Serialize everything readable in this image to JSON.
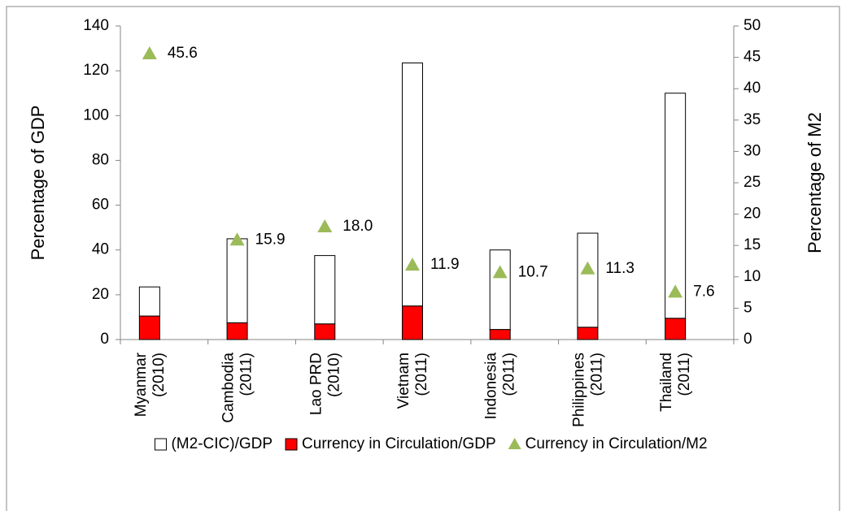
{
  "chart_data": {
    "type": "bar_triangle",
    "categories": [
      [
        "Myanmar",
        "(2010)"
      ],
      [
        "Cambodia",
        "(2011)"
      ],
      [
        "Lao PRD",
        "(2010)"
      ],
      [
        "Vietnam",
        "(2011)"
      ],
      [
        "Indonesia",
        "(2011)"
      ],
      [
        "Philippines",
        "(2011)"
      ],
      [
        "Thailand",
        "(2011)"
      ]
    ],
    "series": [
      {
        "name": "(M2-CIC)/GDP",
        "color": "#ffffff",
        "values": [
          13,
          37.5,
          30.5,
          108.5,
          35.5,
          42,
          100.5
        ]
      },
      {
        "name": "Currency in Circulation/GDP",
        "color": "#ff0000",
        "values": [
          10.5,
          7.5,
          7,
          15,
          4.5,
          5.5,
          9.5
        ]
      },
      {
        "name": "Currency in Circulation/M2",
        "color": "#9bbb59",
        "axis": "y2",
        "values": [
          45.6,
          15.9,
          18.0,
          11.9,
          10.7,
          11.3,
          7.6
        ],
        "value_labels": [
          "45.6",
          "15.9",
          "18.0",
          "11.9",
          "10.7",
          "11.3",
          "7.6"
        ]
      }
    ],
    "ylabel": "Percentage of GDP",
    "y2label": "Percentage of M2",
    "ylim": [
      0,
      140
    ],
    "yticks": [
      0,
      20,
      40,
      60,
      80,
      100,
      120,
      140
    ],
    "y2lim": [
      0,
      50
    ],
    "y2ticks": [
      0,
      5,
      10,
      15,
      20,
      25,
      30,
      35,
      40,
      45,
      50
    ]
  }
}
